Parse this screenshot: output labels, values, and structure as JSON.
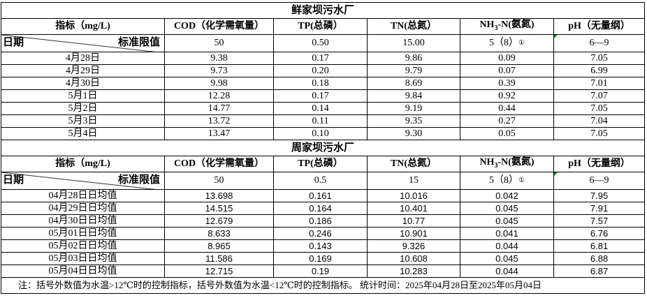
{
  "headers": {
    "indicator": "指标（mg/L)",
    "cod": "COD（化学需氧量）",
    "tp": "TP(总磷）",
    "tn": "TN(总氮）",
    "nh3_pre": "NH",
    "nh3_sub": "3",
    "nh3_post": "-N(氨氮)",
    "ph": "pH（无量纲）",
    "date": "日期",
    "standard": "标准限值"
  },
  "colors": {
    "marker": "#1a7f2a"
  },
  "section1": {
    "title": "鲜家坝污水厂",
    "standard": {
      "cod": "50",
      "tp": "0.50",
      "tn": "15.00",
      "nh3": "5（8）",
      "nh3_note": "①",
      "ph": "6—9"
    },
    "rows": [
      {
        "date": "4月28日",
        "cod": "9.38",
        "tp": "0.17",
        "tn": "9.86",
        "nh3": "0.09",
        "ph": "7.05"
      },
      {
        "date": "4月29日",
        "cod": "9.73",
        "tp": "0.20",
        "tn": "9.79",
        "nh3": "0.07",
        "ph": "6.99"
      },
      {
        "date": "4月30日",
        "cod": "9.98",
        "tp": "0.18",
        "tn": "8.69",
        "nh3": "0.39",
        "ph": "7.01"
      },
      {
        "date": "5月1日",
        "cod": "12.28",
        "tp": "0.17",
        "tn": "9.84",
        "nh3": "0.92",
        "ph": "7.07"
      },
      {
        "date": "5月2日",
        "cod": "14.77",
        "tp": "0.14",
        "tn": "9.19",
        "nh3": "0.44",
        "ph": "7.05"
      },
      {
        "date": "5月3日",
        "cod": "13.72",
        "tp": "0.11",
        "tn": "9.35",
        "nh3": "0.27",
        "ph": "7.04"
      },
      {
        "date": "5月4日",
        "cod": "13.47",
        "tp": "0.10",
        "tn": "9.30",
        "nh3": "0.05",
        "ph": "7.05"
      }
    ]
  },
  "section2": {
    "title": "周家坝污水厂",
    "standard": {
      "cod": "50",
      "tp": "0.5",
      "tn": "15",
      "nh3": "5（8）",
      "nh3_note": "①",
      "ph": "6—9"
    },
    "rows": [
      {
        "date": "04月28日日均值",
        "cod": "13.698",
        "tp": "0.161",
        "tn": "10.016",
        "nh3": "0.042",
        "ph": "7.95"
      },
      {
        "date": "04月29日日均值",
        "cod": "14.515",
        "tp": "0.164",
        "tn": "10.401",
        "nh3": "0.045",
        "ph": "7.91"
      },
      {
        "date": "04月30日日均值",
        "cod": "12.679",
        "tp": "0.186",
        "tn": "10.77",
        "nh3": "0.045",
        "ph": "7.57"
      },
      {
        "date": "05月01日日均值",
        "cod": "8.633",
        "tp": "0.246",
        "tn": "10.901",
        "nh3": "0.041",
        "ph": "6.76"
      },
      {
        "date": "05月02日日均值",
        "cod": "8.965",
        "tp": "0.143",
        "tn": "9.326",
        "nh3": "0.044",
        "ph": "6.81"
      },
      {
        "date": "05月03日日均值",
        "cod": "11.586",
        "tp": "0.169",
        "tn": "10.608",
        "nh3": "0.045",
        "ph": "6.88"
      },
      {
        "date": "05月04日日均值",
        "cod": "12.715",
        "tp": "0.19",
        "tn": "10.283",
        "nh3": "0.044",
        "ph": "6.87"
      }
    ]
  },
  "note": "注：括号外数值为水温>12℃时的控制指标，括号外数值为水温<12℃时的控制指标。  统计时间：2025年04月28日至2025年05月04日"
}
